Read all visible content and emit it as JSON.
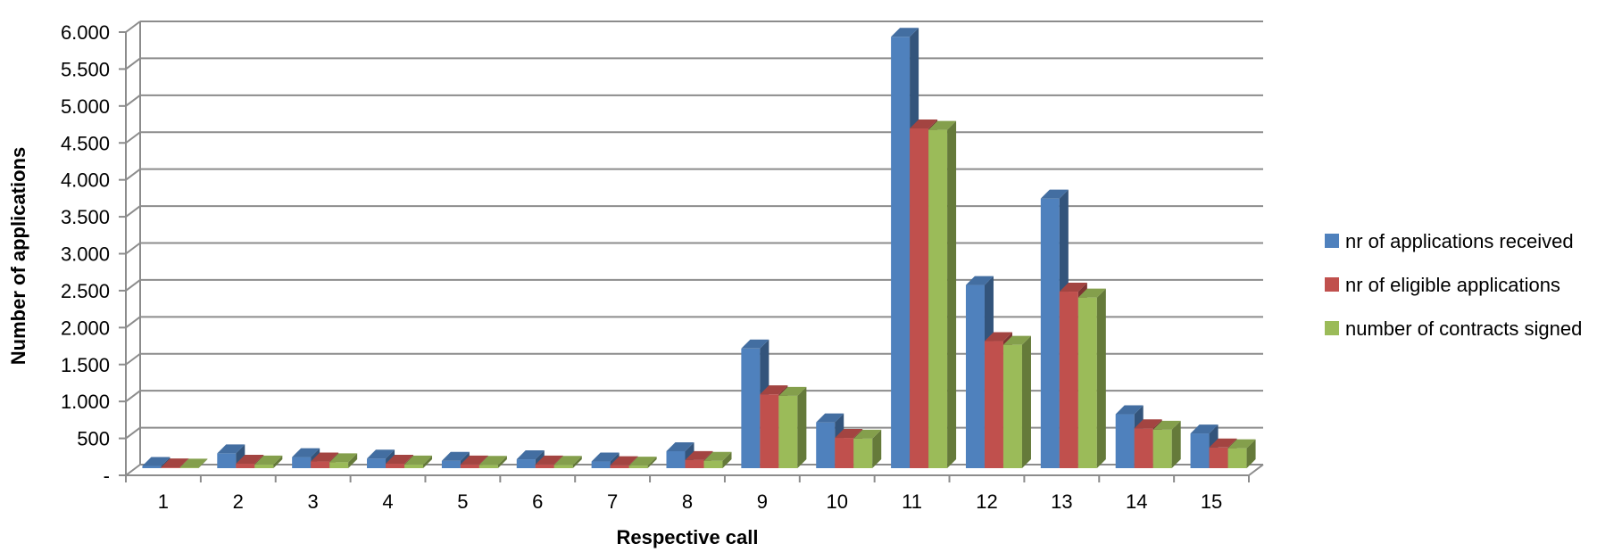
{
  "chart_data": {
    "type": "bar",
    "xlabel": "Respective call",
    "ylabel": "Number of applications",
    "ylim": [
      0,
      6000
    ],
    "yticks": [
      "-",
      "500",
      "1.000",
      "1.500",
      "2.000",
      "2.500",
      "3.000",
      "3.500",
      "4.000",
      "4.500",
      "5.000",
      "5.500",
      "6.000"
    ],
    "ytick_values": [
      0,
      500,
      1000,
      1500,
      2000,
      2500,
      3000,
      3500,
      4000,
      4500,
      5000,
      5500,
      6000
    ],
    "categories": [
      "1",
      "2",
      "3",
      "4",
      "5",
      "6",
      "7",
      "8",
      "9",
      "10",
      "11",
      "12",
      "13",
      "14",
      "15"
    ],
    "grid": true,
    "legend_position": "right",
    "series": [
      {
        "name": "nr of applications received",
        "color": "#4F81BD",
        "values": [
          30,
          200,
          150,
          130,
          100,
          120,
          90,
          230,
          1620,
          620,
          5840,
          2480,
          3650,
          730,
          470
        ]
      },
      {
        "name": "nr of eligible applications",
        "color": "#C0504D",
        "values": [
          10,
          60,
          90,
          60,
          50,
          50,
          40,
          110,
          1000,
          410,
          4600,
          1720,
          2390,
          540,
          280
        ]
      },
      {
        "name": "number of contracts signed",
        "color": "#9BBB59",
        "values": [
          8,
          50,
          80,
          50,
          45,
          45,
          35,
          100,
          980,
          400,
          4580,
          1670,
          2310,
          520,
          270
        ]
      }
    ]
  }
}
